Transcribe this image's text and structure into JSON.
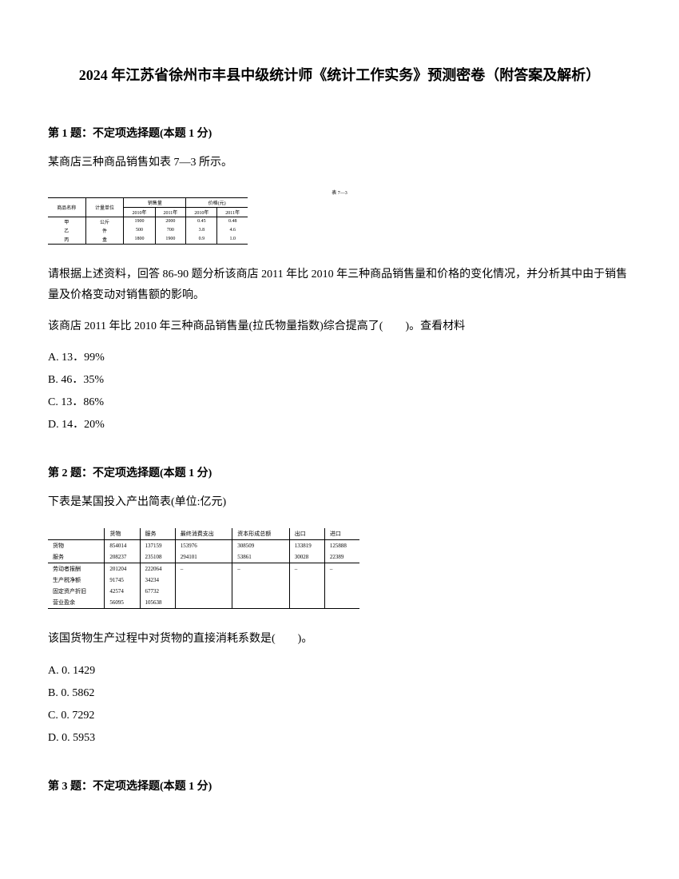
{
  "title": "2024 年江苏省徐州市丰县中级统计师《统计工作实务》预测密卷（附答案及解析）",
  "q1": {
    "header": "第 1 题：不定项选择题(本题 1 分)",
    "intro": "某商店三种商品销售如表 7—3 所示。",
    "table": {
      "caption": "表 7—3",
      "header1": [
        "商品名称",
        "计量单位",
        "销售量",
        "价格(元)"
      ],
      "header2": [
        "",
        "",
        "2010年",
        "2011年",
        "2010年",
        "2011年"
      ],
      "rows": [
        [
          "甲",
          "公斤",
          "1900",
          "2000",
          "0.45",
          "0.48"
        ],
        [
          "乙",
          "件",
          "500",
          "700",
          "3.8",
          "4.6"
        ],
        [
          "丙",
          "盒",
          "1800",
          "1900",
          "0.9",
          "1.0"
        ]
      ]
    },
    "context": "请根据上述资料，回答 86-90 题分析该商店 2011 年比 2010 年三种商品销售量和价格的变化情况，并分析其中由于销售量及价格变动对销售额的影响。",
    "stem": "该商店 2011 年比 2010 年三种商品销售量(拉氏物量指数)综合提高了(　　)。查看材料",
    "options": [
      "A. 13．99%",
      "B. 46．35%",
      "C. 13．86%",
      "D. 14．20%"
    ]
  },
  "q2": {
    "header": "第 2 题：不定项选择题(本题 1 分)",
    "intro": "下表是某国投入产出简表(单位:亿元)",
    "table": {
      "cols": [
        "",
        "货物",
        "服务",
        "最终消费支出",
        "资本形成总额",
        "出口",
        "进口"
      ],
      "rows": [
        [
          "货物",
          "854014",
          "137159",
          "153976",
          "308509",
          "133819",
          "125888"
        ],
        [
          "服务",
          "208237",
          "235108",
          "294101",
          "53861",
          "30028",
          "22389"
        ],
        [
          "劳动者报酬",
          "201204",
          "222064",
          "–",
          "–",
          "–",
          "–"
        ],
        [
          "生产税净额",
          "91745",
          "34234",
          "",
          "",
          "",
          ""
        ],
        [
          "固定资产折旧",
          "42574",
          "67732",
          "",
          "",
          "",
          ""
        ],
        [
          "营业盈余",
          "56095",
          "105638",
          "",
          "",
          "",
          ""
        ]
      ]
    },
    "stem": "该国货物生产过程中对货物的直接消耗系数是(　　)。",
    "options": [
      "A. 0. 1429",
      "B. 0. 5862",
      "C. 0. 7292",
      "D. 0. 5953"
    ]
  },
  "q3": {
    "header": "第 3 题：不定项选择题(本题 1 分)"
  }
}
